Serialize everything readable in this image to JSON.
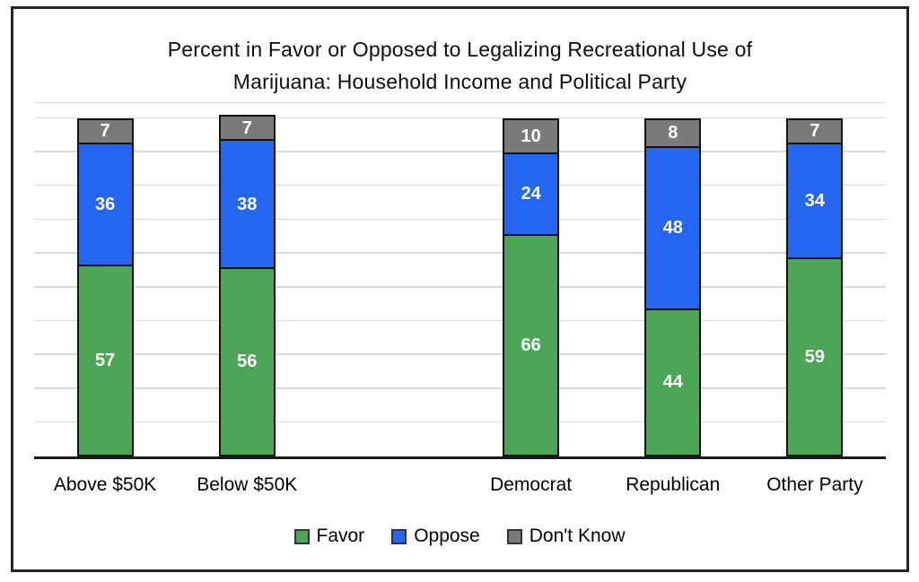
{
  "figure": {
    "title_line1": "Percent in Favor or Opposed to Legalizing Recreational Use of",
    "title_line2": "Marijuana: Household Income and Political Party"
  },
  "chart_data": {
    "type": "bar",
    "subtype": "stacked-column",
    "title": "Percent in Favor or Opposed to Legalizing Recreational Use of Marijuana: Household Income and Political Party",
    "categories": [
      "Above $50K",
      "Below $50K",
      "",
      "Democrat",
      "Republican",
      "Other Party"
    ],
    "series": [
      {
        "name": "Favor",
        "color": "#4DA657",
        "values": [
          57,
          56,
          null,
          66,
          44,
          59
        ]
      },
      {
        "name": "Oppose",
        "color": "#2466F0",
        "values": [
          36,
          38,
          null,
          24,
          48,
          34
        ]
      },
      {
        "name": "Don't Know",
        "color": "#7A7A7A",
        "values": [
          7,
          7,
          null,
          10,
          8,
          7
        ]
      }
    ],
    "ylim": [
      0,
      105
    ],
    "y_major_unit": 10,
    "grid": "horizontal",
    "gridline_color": "#D9D9D9",
    "axis_color": "#1A1A1A",
    "bar_border_color": "#141414",
    "value_label_color": "#FFFFFF",
    "legend_position": "bottom"
  }
}
